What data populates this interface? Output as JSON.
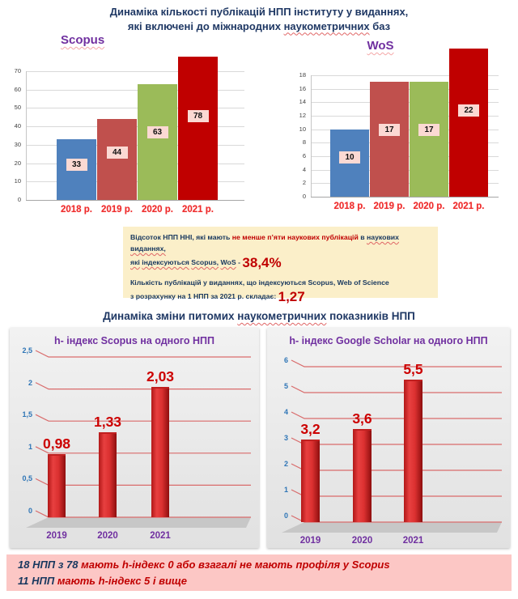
{
  "page": {
    "main_title_lines": [
      [
        {
          "t": "Динаміка кількості публікацій НПП інституту у виданнях,",
          "c": "t"
        }
      ],
      [
        {
          "t": "які включені до міжнародних ",
          "c": "t"
        },
        {
          "t": "наукометричних",
          "c": "tw"
        },
        {
          "t": "  баз",
          "c": "t"
        }
      ]
    ],
    "section_title": [
      {
        "t": "Динаміка зміни питомих ",
        "c": "t"
      },
      {
        "t": "наукометричних",
        "c": "tw"
      },
      {
        "t": " показників НПП",
        "c": "t"
      }
    ]
  },
  "chart_labels": {
    "scopus": "Scopus",
    "wos": "WoS"
  },
  "colors": {
    "navy": "#1F3864",
    "purple": "#7030A0",
    "year_red": "#EE2B2B",
    "bar_blue": "#4F81BD",
    "bar_brick": "#C0504D",
    "bar_green": "#9BBB59",
    "bar_red": "#C00000",
    "value_label_bg": "#FBD9D3",
    "infobox_bg": "#FBEFC9",
    "bottombox_bg": "#FCC7C5",
    "grid_red": "#D96B6B",
    "tick_blue": "#2E75B6",
    "data_label_red": "#CC0000"
  },
  "chart_data": [
    {
      "id": "scopus",
      "type": "bar",
      "title": "Scopus",
      "categories": [
        "2018 р.",
        "2019 р.",
        "2020 р.",
        "2021 р."
      ],
      "values": [
        33,
        44,
        63,
        78
      ],
      "value_labels": [
        "33",
        "44",
        "63",
        "78"
      ],
      "bar_colors": [
        "#4F81BD",
        "#C0504D",
        "#9BBB59",
        "#C00000"
      ],
      "ylim": [
        0,
        70
      ],
      "ticks": [
        0,
        10,
        20,
        30,
        40,
        50,
        60,
        70
      ],
      "tick_labels": [
        "0",
        "10",
        "20",
        "30",
        "40",
        "50",
        "60",
        "70"
      ],
      "grid": true,
      "legend": "none",
      "xlabel": "",
      "ylabel": ""
    },
    {
      "id": "wos",
      "type": "bar",
      "title": "WoS",
      "categories": [
        "2018 р.",
        "2019 р.",
        "2020 р.",
        "2021 р."
      ],
      "values": [
        10,
        17,
        17,
        22
      ],
      "value_labels": [
        "10",
        "17",
        "17",
        "22"
      ],
      "bar_colors": [
        "#4F81BD",
        "#C0504D",
        "#9BBB59",
        "#C00000"
      ],
      "ylim": [
        0,
        18
      ],
      "ticks": [
        0,
        2,
        4,
        6,
        8,
        10,
        12,
        14,
        16,
        18
      ],
      "tick_labels": [
        "0",
        "2",
        "4",
        "6",
        "8",
        "10",
        "12",
        "14",
        "16",
        "18"
      ],
      "grid": true,
      "legend": "none",
      "xlabel": "",
      "ylabel": ""
    },
    {
      "id": "h-scopus",
      "type": "bar",
      "style3d": true,
      "title": "h- індекс Scopus на одного НПП",
      "categories": [
        "2019",
        "2020",
        "2021"
      ],
      "values": [
        0.98,
        1.33,
        2.03
      ],
      "value_labels": [
        "0,98",
        "1,33",
        "2,03"
      ],
      "ylim": [
        0,
        2.5
      ],
      "ticks": [
        0,
        0.5,
        1,
        1.5,
        2,
        2.5
      ],
      "tick_labels": [
        "0",
        "0,5",
        "1",
        "1,5",
        "2",
        "2,5"
      ],
      "grid": true,
      "legend": "none",
      "xlabel": "",
      "ylabel": ""
    },
    {
      "id": "h-gscholar",
      "type": "bar",
      "style3d": true,
      "title": "h- індекс Google Scholar на одного НПП",
      "categories": [
        "2019",
        "2020",
        "2021"
      ],
      "values": [
        3.2,
        3.6,
        5.5
      ],
      "value_labels": [
        "3,2",
        "3,6",
        "5,5"
      ],
      "ylim": [
        0,
        6
      ],
      "ticks": [
        0,
        1,
        2,
        3,
        4,
        5,
        6
      ],
      "tick_labels": [
        "0",
        "1",
        "2",
        "3",
        "4",
        "5",
        "6"
      ],
      "grid": true,
      "legend": "none",
      "xlabel": "",
      "ylabel": ""
    }
  ],
  "infobox": {
    "line1": [
      {
        "t": "Відсоток НПП ННІ, які мають ",
        "c": "n"
      },
      {
        "t": "не менше п’яти наукових публікацій",
        "c": "r"
      },
      {
        "t": " в ",
        "c": "n"
      },
      {
        "t": "наукових",
        "c": "nw"
      },
      {
        "t": " ",
        "c": "n"
      },
      {
        "t": "виданнях,",
        "c": "nw"
      }
    ],
    "line2": [
      {
        "t": "які",
        "c": "nw"
      },
      {
        "t": " ",
        "c": "n"
      },
      {
        "t": "індексуються",
        "c": "nw"
      },
      {
        "t": " ",
        "c": "n"
      },
      {
        "t": "Scopus,",
        "c": "nw"
      },
      {
        "t": " ",
        "c": "n"
      },
      {
        "t": "WoS",
        "c": "nw"
      },
      {
        "t": "  -  ",
        "c": "n"
      },
      {
        "t": "38,4%",
        "c": "big"
      }
    ],
    "line3": [
      {
        "t": "Кількість публікацій у виданнях, що індексуються Scopus, Web of Science",
        "c": "n"
      }
    ],
    "line4": [
      {
        "t": "з розрахунку на 1 НПП за 2021 р. складає:  ",
        "c": "n"
      },
      {
        "t": "1,27",
        "c": "big"
      }
    ]
  },
  "bottombox": {
    "line1": [
      {
        "t": "18 НПП  з 78 ",
        "c": "navy"
      },
      {
        "t": "мають h-індекс 0 або взагалі не мають профіля у Scopus",
        "c": "red"
      }
    ],
    "line2": [
      {
        "t": "11 НПП ",
        "c": "navy"
      },
      {
        "t": "мають h-індекс 5 і вище",
        "c": "red"
      }
    ]
  }
}
